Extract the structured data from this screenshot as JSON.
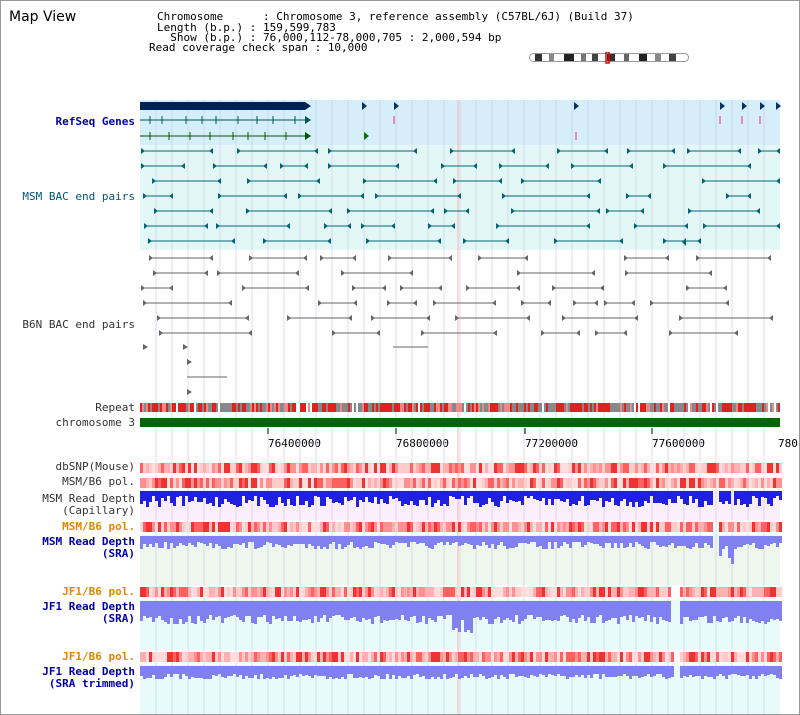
{
  "view_title": "Map View",
  "header": {
    "chromosome_label": "Chromosome      :",
    "chromosome_value": "Chromosome 3, reference assembly (C57BL/6J) (Build 37)",
    "length_label": "Length (b.p.) :",
    "length_value": "159,599,783",
    "show_label": "  Show (b.p.) :",
    "show_value": "76,000,112-78,000,705 : 2,000,594 bp",
    "coverage_label": "Read coverage check span :",
    "coverage_value": "10,000"
  },
  "tracks": {
    "refseq": "RefSeq Genes",
    "msm_bac": "MSM BAC end pairs",
    "b6n_bac": "B6N BAC end pairs",
    "repeat": "Repeat",
    "chromosome": "chromosome 3",
    "dbsnp": "dbSNP(Mouse)",
    "msm_b6_pol_1": "MSM/B6 pol.",
    "msm_depth_cap_1": "MSM Read Depth",
    "msm_depth_cap_2": "(Capillary)",
    "msm_b6_pol_2": "MSM/B6 pol.",
    "msm_depth_sra_1": "MSM Read Depth",
    "msm_depth_sra_2": "(SRA)",
    "jf1_b6_pol_1": "JF1/B6 pol.",
    "jf1_depth_sra_1": "JF1 Read Depth",
    "jf1_depth_sra_2": "(SRA)",
    "jf1_b6_pol_2": "JF1/B6 pol.",
    "jf1_depth_trim_1": "JF1 Read Depth",
    "jf1_depth_trim_2": "(SRA trimmed)"
  },
  "axis": {
    "ticks": [
      "76400000",
      "76800000",
      "77200000",
      "77600000",
      "780"
    ]
  },
  "colors": {
    "refseq_bg": "#d6eefa",
    "msm_bg": "#e4f7f7",
    "chrom_green": "#006600",
    "depth_blue": "#2020e0",
    "depth_light": "#8080f0",
    "pol_red": "#ee4444",
    "grid_line": "#c8c8e8"
  }
}
